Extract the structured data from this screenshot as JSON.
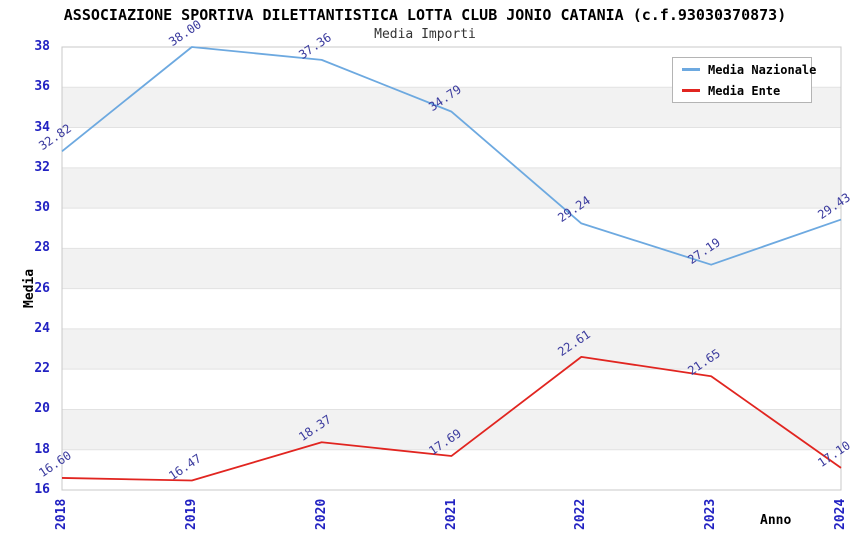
{
  "colors": {
    "series_nazionale": "#6da9e0",
    "series_ente": "#e12520",
    "axis_tick_text": "#2222c2",
    "data_label_text": "#3b3b9e",
    "band_gray": "#f2f2f2",
    "band_white": "#ffffff",
    "gridline": "#e2e2e2",
    "plot_border": "#c8c8c8"
  },
  "chart_data": {
    "type": "line",
    "title": "ASSOCIAZIONE SPORTIVA DILETTANTISTICA LOTTA CLUB JONIO CATANIA (c.f.93030370873)",
    "subtitle": "Media Importi",
    "xlabel": "Anno",
    "ylabel": "Media",
    "x": [
      "2018",
      "2019",
      "2020",
      "2021",
      "2022",
      "2023",
      "2024"
    ],
    "ylim": [
      16,
      38
    ],
    "ytick_step": 2,
    "y_ticks": [
      "16",
      "18",
      "20",
      "22",
      "24",
      "26",
      "28",
      "30",
      "32",
      "34",
      "36",
      "38"
    ],
    "grid": "horizontal gridlines with alternating white/gray bands",
    "legend_position": "top-right",
    "series": [
      {
        "name": "Media Nazionale",
        "color": "#6da9e0",
        "values": [
          32.82,
          38.0,
          37.36,
          34.79,
          29.24,
          27.19,
          29.43
        ],
        "point_labels": [
          "32.82",
          "38.00",
          "37.36",
          "34.79",
          "29.24",
          "27.19",
          "29.43"
        ]
      },
      {
        "name": "Media Ente",
        "color": "#e12520",
        "values": [
          16.6,
          16.47,
          18.37,
          17.69,
          22.61,
          21.65,
          17.1
        ],
        "point_labels": [
          "16.60",
          "16.47",
          "18.37",
          "17.69",
          "22.61",
          "21.65",
          "17.10"
        ]
      }
    ]
  }
}
